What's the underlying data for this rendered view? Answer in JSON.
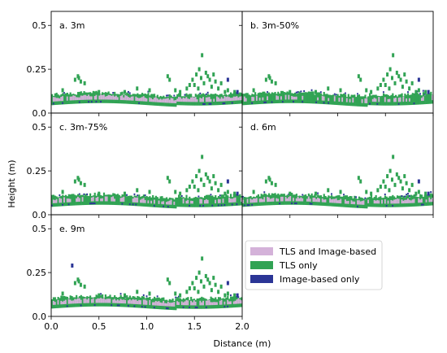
{
  "chart_data": {
    "type": "scatter",
    "xlabel": "Distance (m)",
    "ylabel": "Height (m)",
    "xlim": [
      0.0,
      2.0
    ],
    "ylim": [
      0.0,
      0.58
    ],
    "x_ticks": [
      "0.0",
      "0.5",
      "1.0",
      "1.5",
      "2.0"
    ],
    "y_ticks": [
      "0.0",
      "0.25",
      "0.5"
    ],
    "legend": {
      "placement": "bottom-right",
      "entries": [
        {
          "label": "TLS and Image-based",
          "color": "#d4b2d9"
        },
        {
          "label": "TLS only",
          "color": "#31a354"
        },
        {
          "label": "Image-based only",
          "color": "#2b3596"
        }
      ]
    },
    "panels": [
      {
        "title": "a. 3m",
        "variant": "a"
      },
      {
        "title": "b. 3m-50%",
        "variant": "b"
      },
      {
        "title": "c. 3m-75%",
        "variant": "c"
      },
      {
        "title": "d. 6m",
        "variant": "d"
      },
      {
        "title": "e. 9m",
        "variant": "e"
      }
    ],
    "green_points": [
      [
        0.28,
        0.21
      ],
      [
        0.29,
        0.2
      ],
      [
        0.31,
        0.18
      ],
      [
        0.25,
        0.19
      ],
      [
        0.35,
        0.17
      ],
      [
        0.12,
        0.13
      ],
      [
        0.5,
        0.12
      ],
      [
        0.77,
        0.12
      ],
      [
        0.9,
        0.14
      ],
      [
        1.03,
        0.13
      ],
      [
        1.22,
        0.21
      ],
      [
        1.24,
        0.19
      ],
      [
        1.35,
        0.12
      ],
      [
        1.45,
        0.16
      ],
      [
        1.48,
        0.19
      ],
      [
        1.52,
        0.22
      ],
      [
        1.55,
        0.25
      ],
      [
        1.57,
        0.2
      ],
      [
        1.6,
        0.17
      ],
      [
        1.62,
        0.23
      ],
      [
        1.64,
        0.21
      ],
      [
        1.66,
        0.19
      ],
      [
        1.68,
        0.15
      ],
      [
        1.7,
        0.22
      ],
      [
        1.72,
        0.18
      ],
      [
        1.58,
        0.33
      ],
      [
        1.5,
        0.16
      ],
      [
        1.54,
        0.14
      ],
      [
        1.75,
        0.14
      ],
      [
        1.78,
        0.17
      ],
      [
        1.82,
        0.12
      ],
      [
        1.85,
        0.13
      ],
      [
        1.92,
        0.12
      ],
      [
        1.42,
        0.14
      ],
      [
        1.3,
        0.13
      ]
    ],
    "image_only_points": [
      [
        0.22,
        0.29
      ],
      [
        1.85,
        0.19
      ],
      [
        1.95,
        0.12
      ]
    ]
  }
}
